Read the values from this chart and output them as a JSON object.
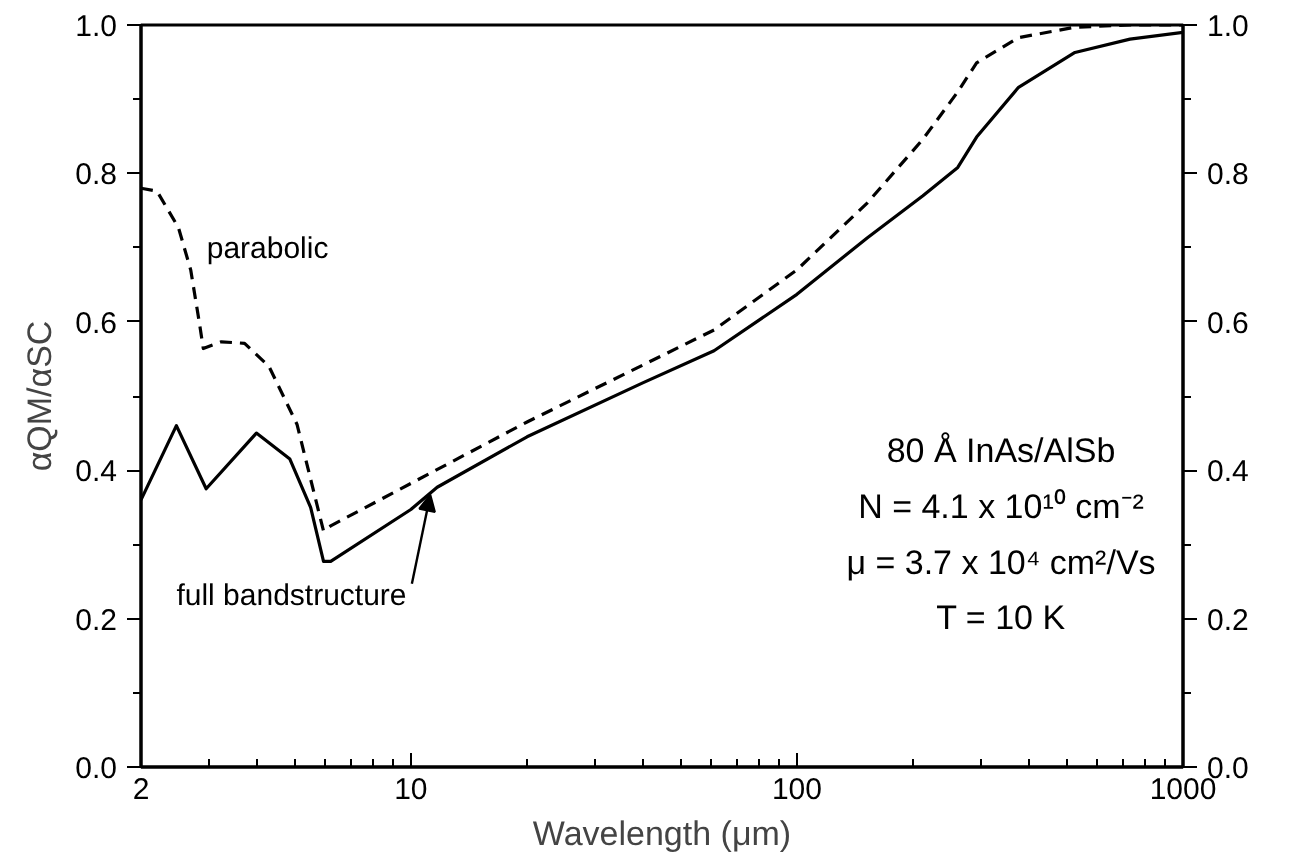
{
  "chart_data": {
    "type": "line",
    "xlabel": "Wavelength (μm)",
    "ylabel": "αQM/αSC",
    "log": "x",
    "xlim": [
      2,
      1000
    ],
    "xticks": [
      2,
      10,
      100,
      1000
    ],
    "ylim": [
      0,
      1
    ],
    "yticks": [
      {
        "value": 0,
        "label": "0.0"
      },
      {
        "value": 0.2,
        "label": "0.2"
      },
      {
        "value": 0.4,
        "label": "0.4"
      },
      {
        "value": 0.6,
        "label": "0.6"
      },
      {
        "value": 0.8,
        "label": "0.8"
      },
      {
        "value": 1,
        "label": "1.0"
      }
    ],
    "y2lim": [
      0,
      1
    ],
    "y2ticks": [
      {
        "value": 0,
        "label": "0.0"
      },
      {
        "value": 0.2,
        "label": "0.2"
      },
      {
        "value": 0.4,
        "label": "0.4"
      },
      {
        "value": 0.6,
        "label": "0.6"
      },
      {
        "value": 0.8,
        "label": "0.8"
      },
      {
        "value": 1,
        "label": "1.0"
      }
    ],
    "grid": false,
    "series": [
      {
        "name": "parabolic",
        "color": "#000000",
        "line_style": "dashed",
        "x": [
          2,
          2.2,
          2.5,
          2.69,
          2.83,
          2.9,
          3.23,
          3.71,
          4.29,
          5.07,
          5.94,
          6.2,
          20,
          40,
          61,
          100,
          152,
          212,
          261,
          292,
          375,
          525,
          729,
          1000
        ],
        "values": [
          0.78,
          0.776,
          0.727,
          0.67,
          0.6,
          0.564,
          0.573,
          0.571,
          0.54,
          0.462,
          0.318,
          0.325,
          0.465,
          0.542,
          0.589,
          0.67,
          0.76,
          0.846,
          0.91,
          0.949,
          0.983,
          0.997,
          1.0,
          1.0
        ]
      },
      {
        "name": "full bandstructure",
        "color": "#000000",
        "line_style": "solid",
        "x": [
          2,
          2.47,
          2.95,
          3.98,
          4.86,
          5.5,
          5.94,
          6.2,
          10,
          11.7,
          20,
          40,
          61,
          100,
          152,
          212,
          261,
          292,
          375,
          525,
          729,
          1000
        ],
        "values": [
          0.36,
          0.46,
          0.375,
          0.45,
          0.415,
          0.35,
          0.277,
          0.277,
          0.347,
          0.377,
          0.445,
          0.518,
          0.561,
          0.637,
          0.713,
          0.77,
          0.808,
          0.849,
          0.916,
          0.963,
          0.981,
          0.99
        ]
      }
    ],
    "annotations": [
      "80 Å InAs/AlSb",
      "N = 4.1 x 10¹⁰ cm⁻²",
      "μ = 3.7 x 10⁴ cm²/Vs",
      "T = 10 K"
    ]
  }
}
